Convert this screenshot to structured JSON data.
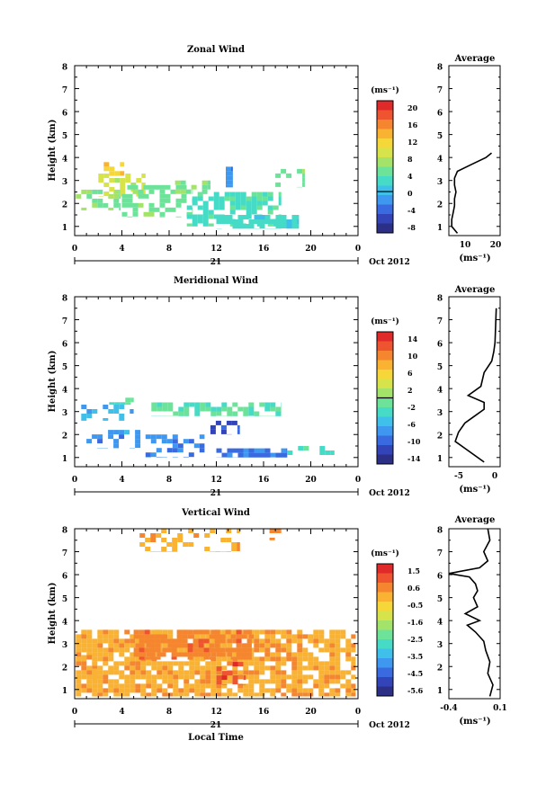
{
  "x_label": "Local Time",
  "date_label": "21",
  "month_label": "Oct 2012",
  "chart_data": [
    {
      "type": "heatmap",
      "title": "Zonal Wind",
      "ylabel": "Height (km)",
      "xticks": [
        "0",
        "4",
        "8",
        "12",
        "16",
        "20",
        "0"
      ],
      "yticks": [
        "1",
        "2",
        "3",
        "4",
        "5",
        "6",
        "7",
        "8"
      ],
      "xlim": [
        0,
        24
      ],
      "ylim": [
        0.6,
        8
      ],
      "colorbar": {
        "unit": "(ms⁻¹)",
        "ticks": [
          "20",
          "16",
          "12",
          "8",
          "4",
          "0",
          "-4",
          "-8"
        ],
        "range": [
          -10,
          22
        ],
        "zero_line": 0
      },
      "patches": [
        {
          "x": [
            0.1,
            3.9
          ],
          "y": [
            1.7,
            2.6
          ],
          "value": 6,
          "density": 0.45
        },
        {
          "x": [
            2.0,
            6.0
          ],
          "y": [
            2.3,
            3.3
          ],
          "value": 9,
          "density": 0.55
        },
        {
          "x": [
            2.0,
            4.2
          ],
          "y": [
            3.2,
            3.8
          ],
          "value": 13,
          "density": 0.5
        },
        {
          "x": [
            4.0,
            10.0
          ],
          "y": [
            1.4,
            2.8
          ],
          "value": 5,
          "density": 0.55
        },
        {
          "x": [
            9.5,
            17.5
          ],
          "y": [
            1.0,
            2.5
          ],
          "value": 3,
          "density": 0.5
        },
        {
          "x": [
            12.0,
            19.0
          ],
          "y": [
            0.9,
            1.5
          ],
          "value": 2,
          "density": 0.8
        },
        {
          "x": [
            12.8,
            13.4
          ],
          "y": [
            2.7,
            3.6
          ],
          "value": -2,
          "density": 0.9
        },
        {
          "x": [
            17.0,
            19.5
          ],
          "y": [
            2.7,
            3.5
          ],
          "value": 5,
          "density": 0.2
        },
        {
          "x": [
            8.5,
            11.5
          ],
          "y": [
            2.4,
            3.0
          ],
          "value": 6,
          "density": 0.25
        }
      ],
      "profile": {
        "title": "Average",
        "xlabel": "(ms⁻¹)",
        "xticks": [
          "10",
          "20"
        ],
        "xlim": [
          4,
          22
        ],
        "heights": [
          0.7,
          1.0,
          1.3,
          1.6,
          1.9,
          2.2,
          2.5,
          2.8,
          3.1,
          3.4,
          3.7,
          4.0,
          4.2
        ],
        "values": [
          7,
          5,
          5,
          5.5,
          6,
          6,
          6.5,
          6,
          6,
          7,
          12,
          17,
          19
        ]
      }
    },
    {
      "type": "heatmap",
      "title": "Meridional Wind",
      "ylabel": "Height (km)",
      "xticks": [
        "0",
        "4",
        "8",
        "12",
        "16",
        "20",
        "0"
      ],
      "yticks": [
        "1",
        "2",
        "3",
        "4",
        "5",
        "6",
        "7",
        "8"
      ],
      "xlim": [
        0,
        24
      ],
      "ylim": [
        0.6,
        8
      ],
      "colorbar": {
        "unit": "(ms⁻¹)",
        "ticks": [
          "14",
          "10",
          "6",
          "2",
          "-2",
          "-6",
          "-10",
          "-14"
        ],
        "range": [
          -16,
          16
        ],
        "zero_line": 0
      },
      "patches": [
        {
          "x": [
            0.1,
            5.0
          ],
          "y": [
            2.6,
            3.3
          ],
          "value": -6,
          "density": 0.3
        },
        {
          "x": [
            1.0,
            6.0
          ],
          "y": [
            1.4,
            2.2
          ],
          "value": -8,
          "density": 0.3
        },
        {
          "x": [
            6.0,
            11.0
          ],
          "y": [
            1.0,
            2.0
          ],
          "value": -9,
          "density": 0.5
        },
        {
          "x": [
            12.0,
            18.0
          ],
          "y": [
            1.0,
            1.4
          ],
          "value": -10,
          "density": 0.75
        },
        {
          "x": [
            6.5,
            17.5
          ],
          "y": [
            2.8,
            3.4
          ],
          "value": -2,
          "density": 0.65
        },
        {
          "x": [
            2.0,
            5.0
          ],
          "y": [
            3.3,
            3.8
          ],
          "value": -3,
          "density": 0.25
        },
        {
          "x": [
            18.0,
            22.0
          ],
          "y": [
            0.9,
            1.5
          ],
          "value": -3,
          "density": 0.2
        },
        {
          "x": [
            11.5,
            14.0
          ],
          "y": [
            2.0,
            2.6
          ],
          "value": -12,
          "density": 0.3
        }
      ],
      "profile": {
        "title": "Average",
        "xlabel": "(ms⁻¹)",
        "xticks": [
          "-5",
          "0"
        ],
        "xlim": [
          -7,
          1
        ],
        "heights": [
          0.8,
          1.3,
          1.7,
          2.1,
          2.5,
          2.8,
          3.1,
          3.4,
          3.7,
          4.1,
          4.7,
          5.2,
          5.6,
          6.0,
          7.5
        ],
        "values": [
          -1.5,
          -4,
          -6,
          -5.5,
          -4.5,
          -3,
          -1.5,
          -1.5,
          -4,
          -2,
          -1.5,
          -0.3,
          0,
          0.2,
          0.4
        ]
      }
    },
    {
      "type": "heatmap",
      "title": "Vertical Wind",
      "ylabel": "Height (km)",
      "xticks": [
        "0",
        "4",
        "8",
        "12",
        "16",
        "20",
        "0"
      ],
      "yticks": [
        "1",
        "2",
        "3",
        "4",
        "5",
        "6",
        "7",
        "8"
      ],
      "xlim": [
        0,
        24
      ],
      "ylim": [
        0.6,
        8
      ],
      "colorbar": {
        "unit": "(ms⁻¹)",
        "ticks": [
          "1.5",
          "0.6",
          "-0.5",
          "-1.6",
          "-2.5",
          "-3.5",
          "-4.5",
          "-5.6"
        ],
        "range": [
          -6,
          2
        ],
        "zero_line": null
      },
      "patches": [
        {
          "x": [
            0.1,
            23.8
          ],
          "y": [
            0.7,
            3.6
          ],
          "value": 0.1,
          "density": 0.8
        },
        {
          "x": [
            0.1,
            3.5
          ],
          "y": [
            1.4,
            2.5
          ],
          "value": 0.1,
          "density": 0.2
        },
        {
          "x": [
            5.0,
            15.0
          ],
          "y": [
            2.3,
            3.6
          ],
          "value": 0.6,
          "density": 0.6
        },
        {
          "x": [
            12.0,
            14.5
          ],
          "y": [
            1.2,
            2.2
          ],
          "value": 1.2,
          "density": 0.3
        },
        {
          "x": [
            5.5,
            14.0
          ],
          "y": [
            7.0,
            8.0
          ],
          "value": 0.1,
          "density": 0.35
        },
        {
          "x": [
            16.5,
            17.5
          ],
          "y": [
            7.5,
            8.0
          ],
          "value": 0.6,
          "density": 0.4
        }
      ],
      "profile": {
        "title": "Average",
        "xlabel": "(ms⁻¹)",
        "xticks": [
          "-0.4",
          "0.1"
        ],
        "xlim": [
          -0.4,
          0.1
        ],
        "heights": [
          0.7,
          1.2,
          1.7,
          2.2,
          2.7,
          3.1,
          3.5,
          3.8,
          4.0,
          4.3,
          4.6,
          5.0,
          5.3,
          5.6,
          5.9,
          6.05,
          6.3,
          6.6,
          7.0,
          7.5,
          8.0
        ],
        "values": [
          0.0,
          0.03,
          -0.02,
          0.0,
          -0.04,
          -0.06,
          -0.14,
          -0.22,
          -0.1,
          -0.24,
          -0.12,
          -0.16,
          -0.12,
          -0.14,
          -0.2,
          -0.4,
          -0.1,
          -0.02,
          -0.06,
          0.0,
          -0.02
        ]
      }
    }
  ]
}
